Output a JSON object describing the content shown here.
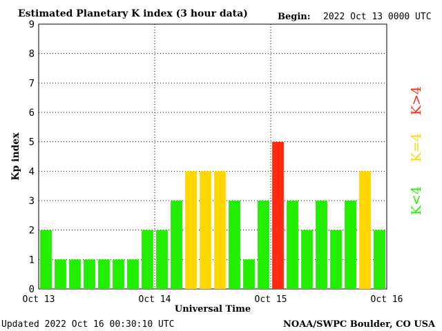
{
  "header": {
    "title": "Estimated Planetary K index (3 hour data)",
    "begin_label": "Begin:",
    "begin_value": "2022 Oct 13 0000 UTC"
  },
  "footer": {
    "updated": "Updated 2022 Oct 16 00:30:10 UTC",
    "credit": "NOAA/SWPC Boulder, CO USA"
  },
  "legend": {
    "high": "K>4",
    "equal": "K=4",
    "low": "K<4"
  },
  "colors": {
    "low": "#22ee00",
    "equal": "#ffd700",
    "high": "#ff2a10"
  },
  "chart_data": {
    "type": "bar",
    "title": "Estimated Planetary K index (3 hour data)",
    "xlabel": "Universal Time",
    "ylabel": "Kp index",
    "ylim": [
      0,
      9
    ],
    "yticks": [
      0,
      1,
      2,
      3,
      4,
      5,
      6,
      7,
      8,
      9
    ],
    "xticks": [
      "Oct 13",
      "Oct 14",
      "Oct 15",
      "Oct 16"
    ],
    "interval_hours": 3,
    "values": [
      2,
      1,
      1,
      1,
      1,
      1,
      1,
      2,
      2,
      3,
      4,
      4,
      4,
      3,
      1,
      3,
      5,
      3,
      2,
      3,
      2,
      3,
      4,
      2
    ],
    "grid": true
  }
}
